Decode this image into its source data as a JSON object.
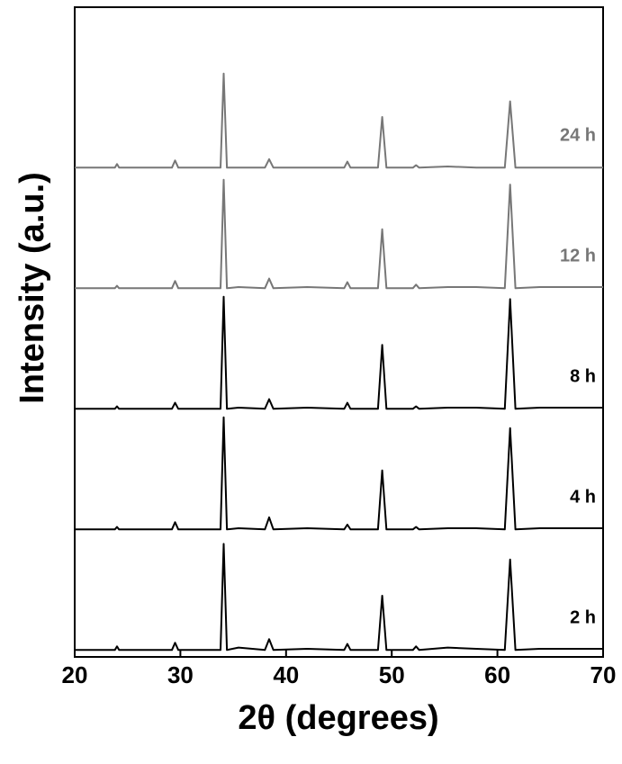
{
  "chart_data": {
    "type": "line",
    "x_label": "2θ (degrees)",
    "y_label": "Intensity (a.u.)",
    "x": [
      20,
      22,
      23.8,
      24,
      24.2,
      29.2,
      29.5,
      29.8,
      33.8,
      34.1,
      34.4,
      35.5,
      38.0,
      38.4,
      38.8,
      42,
      45.5,
      45.8,
      46.1,
      48.7,
      49.1,
      49.5,
      52,
      52.3,
      52.6,
      55.3,
      58,
      60.7,
      61.2,
      61.7,
      64,
      70
    ],
    "xlim": [
      20,
      70
    ],
    "xticks": [
      20,
      30,
      40,
      50,
      60,
      70
    ],
    "ylim": [
      0,
      100
    ],
    "stacked_offset": true,
    "series": [
      {
        "name": "2 h",
        "color": "#000000",
        "values": [
          2,
          2,
          2,
          5,
          2,
          2,
          8,
          2,
          2,
          90,
          2,
          4,
          2,
          11,
          2,
          3,
          2,
          7,
          2,
          2,
          47,
          2,
          2,
          5,
          2,
          4,
          3,
          2,
          77,
          2,
          3,
          3
        ]
      },
      {
        "name": "4 h",
        "color": "#000000",
        "values": [
          2,
          2,
          2,
          4,
          2,
          2,
          8,
          2,
          2,
          95,
          2,
          3,
          2,
          12,
          2,
          3,
          2,
          6,
          2,
          2,
          51,
          2,
          2,
          4,
          2,
          3,
          3,
          2,
          86,
          2,
          3,
          3
        ]
      },
      {
        "name": "8 h",
        "color": "#000000",
        "values": [
          2,
          2,
          2,
          4,
          2,
          2,
          7,
          2,
          2,
          95,
          2,
          3,
          2,
          10,
          2,
          3,
          2,
          7,
          2,
          2,
          55,
          2,
          2,
          4,
          2,
          3,
          3,
          2,
          93,
          2,
          3,
          3
        ]
      },
      {
        "name": "12 h",
        "color": "#777777",
        "values": [
          2,
          2,
          2,
          4,
          2,
          2,
          8,
          2,
          2,
          92,
          2,
          3,
          2,
          10,
          2,
          3,
          2,
          7,
          2,
          2,
          51,
          2,
          2,
          5,
          2,
          3,
          3,
          2,
          88,
          2,
          3,
          3
        ]
      },
      {
        "name": "24 h",
        "color": "#777777",
        "values": [
          2,
          2,
          2,
          5,
          2,
          2,
          8,
          2,
          2,
          80,
          2,
          2,
          2,
          9,
          2,
          2,
          2,
          7,
          2,
          2,
          44,
          2,
          2,
          4,
          2,
          3,
          2,
          2,
          57,
          2,
          2,
          2
        ]
      }
    ]
  }
}
